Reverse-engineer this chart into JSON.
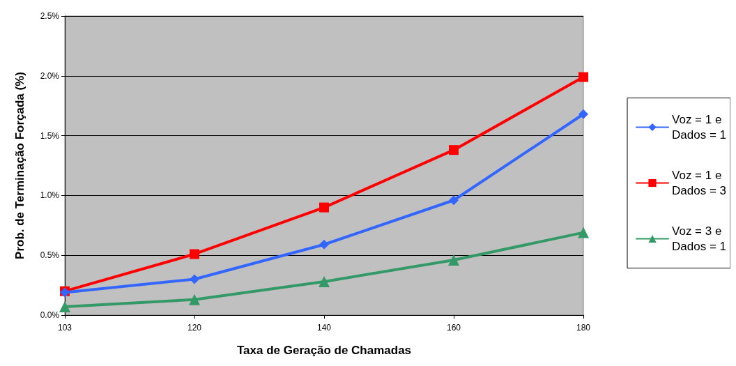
{
  "chart_data": {
    "type": "line",
    "xlabel": "Taxa de Geração de Chamadas",
    "ylabel": "Prob. de Terminação Forçada (%)",
    "categories": [
      "103",
      "120",
      "140",
      "160",
      "180"
    ],
    "series": [
      {
        "name": "Voz = 1 e\nDados = 1",
        "color": "#3366ff",
        "marker": "diamond",
        "values": [
          0.19,
          0.3,
          0.59,
          0.96,
          1.68
        ]
      },
      {
        "name": "Voz = 1 e\nDados = 3",
        "color": "#ff0000",
        "marker": "square",
        "values": [
          0.2,
          0.51,
          0.9,
          1.38,
          1.99
        ]
      },
      {
        "name": "Voz = 3 e\nDados = 1",
        "color": "#339966",
        "marker": "triangle",
        "values": [
          0.07,
          0.13,
          0.28,
          0.46,
          0.69
        ]
      }
    ],
    "ylim": [
      0,
      2.5
    ],
    "yticks": [
      {
        "value": 0,
        "label": "0.0%"
      },
      {
        "value": 0.5,
        "label": "0.5%"
      },
      {
        "value": 1,
        "label": "1.0%"
      },
      {
        "value": 1.5,
        "label": "1.5%"
      },
      {
        "value": 2,
        "label": "2.0%"
      },
      {
        "value": 2.5,
        "label": "2.5%"
      }
    ],
    "grid": "y",
    "legend": "right",
    "line_style": "solid"
  }
}
